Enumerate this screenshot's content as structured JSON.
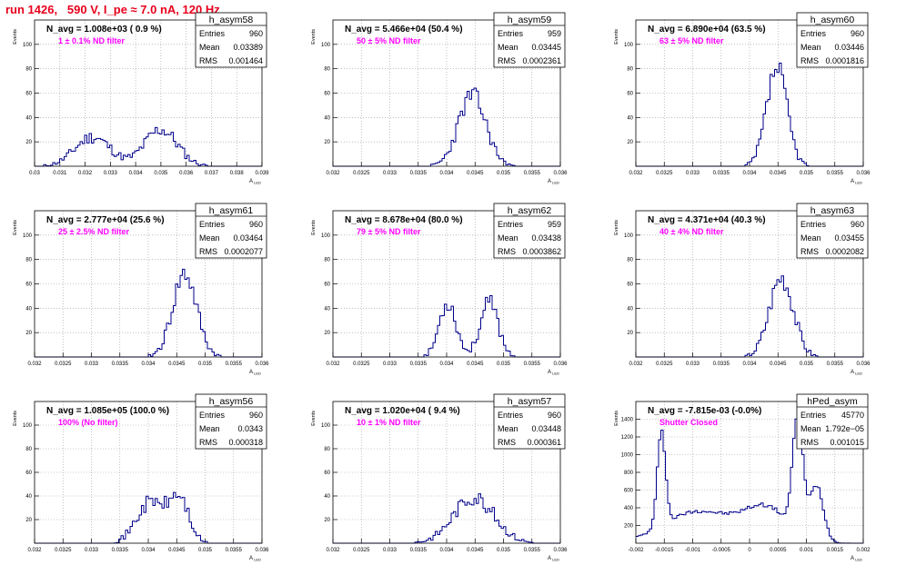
{
  "header": {
    "run_title": "run 1426,   590 V, I_pe ≈ 7.0 nA, 120 Hz"
  },
  "styles": {
    "title_color": "#e8001c",
    "filter_color": "#ff00ff",
    "histo_color": "#00008b",
    "grid_color": "#999999"
  },
  "chart_data": [
    {
      "type": "histogram",
      "name": "h_asym58",
      "n_avg_label": "N_avg = 1.008e+03 ( 0.9 %)",
      "filter_label": "1 ± 0.1% ND filter",
      "stats": {
        "Entries": "960",
        "Mean": "0.03389",
        "RMS": "0.001464"
      },
      "ylabel": "Events",
      "xlabel": "A_LED",
      "xlim": [
        0.03,
        0.039
      ],
      "ylim": [
        0,
        120
      ],
      "xticks": [
        "0.03",
        "0.031",
        "0.032",
        "0.033",
        "0.034",
        "0.035",
        "0.036",
        "0.037",
        "0.038",
        "0.039"
      ],
      "yticks": [
        "20",
        "40",
        "60",
        "80",
        "100"
      ],
      "peaks": [
        [
          0.0323,
          24,
          0.0007
        ],
        [
          0.035,
          30,
          0.00065
        ]
      ],
      "noise_seed": 11
    },
    {
      "type": "histogram",
      "name": "h_asym59",
      "n_avg_label": "N_avg = 5.466e+04 (50.4 %)",
      "filter_label": "50 ± 5% ND filter",
      "stats": {
        "Entries": "959",
        "Mean": "0.03445",
        "RMS": "0.0002361"
      },
      "ylabel": "Events",
      "xlabel": "A_LED",
      "xlim": [
        0.032,
        0.036
      ],
      "ylim": [
        0,
        120
      ],
      "xticks": [
        "0.032",
        "0.0325",
        "0.033",
        "0.0335",
        "0.034",
        "0.0345",
        "0.035",
        "0.0355",
        "0.036"
      ],
      "yticks": [
        "20",
        "40",
        "60",
        "80",
        "100"
      ],
      "peaks": [
        [
          0.03445,
          58,
          0.00024
        ]
      ],
      "noise_seed": 23
    },
    {
      "type": "histogram",
      "name": "h_asym60",
      "n_avg_label": "N_avg = 6.890e+04 (63.5 %)",
      "filter_label": "63 ± 5% ND filter",
      "stats": {
        "Entries": "960",
        "Mean": "0.03446",
        "RMS": "0.0001816"
      },
      "ylabel": "Events",
      "xlabel": "A_LED",
      "xlim": [
        0.032,
        0.036
      ],
      "ylim": [
        0,
        120
      ],
      "xticks": [
        "0.032",
        "0.0325",
        "0.033",
        "0.0335",
        "0.034",
        "0.0345",
        "0.035",
        "0.0355",
        "0.036"
      ],
      "yticks": [
        "20",
        "40",
        "60",
        "80",
        "100"
      ],
      "peaks": [
        [
          0.03448,
          80,
          0.00018
        ]
      ],
      "noise_seed": 37
    },
    {
      "type": "histogram",
      "name": "h_asym61",
      "n_avg_label": "N_avg = 2.777e+04 (25.6 %)",
      "filter_label": "25 ± 2.5% ND filter",
      "stats": {
        "Entries": "960",
        "Mean": "0.03464",
        "RMS": "0.0002077"
      },
      "ylabel": "Events",
      "xlabel": "A_LED",
      "xlim": [
        0.032,
        0.036
      ],
      "ylim": [
        0,
        120
      ],
      "xticks": [
        "0.032",
        "0.0325",
        "0.033",
        "0.0335",
        "0.034",
        "0.0345",
        "0.035",
        "0.0355",
        "0.036"
      ],
      "yticks": [
        "20",
        "40",
        "60",
        "80",
        "100"
      ],
      "peaks": [
        [
          0.03464,
          68,
          0.00021
        ]
      ],
      "noise_seed": 41
    },
    {
      "type": "histogram",
      "name": "h_asym62",
      "n_avg_label": "N_avg = 8.678e+04 (80.0 %)",
      "filter_label": "79 ± 5% ND filter",
      "stats": {
        "Entries": "959",
        "Mean": "0.03438",
        "RMS": "0.0003862"
      },
      "ylabel": "Events",
      "xlabel": "A_LED",
      "xlim": [
        0.032,
        0.036
      ],
      "ylim": [
        0,
        120
      ],
      "xticks": [
        "0.032",
        "0.0325",
        "0.033",
        "0.0335",
        "0.034",
        "0.0345",
        "0.035",
        "0.0355",
        "0.036"
      ],
      "yticks": [
        "20",
        "40",
        "60",
        "80",
        "100"
      ],
      "peaks": [
        [
          0.03402,
          45,
          0.00015
        ],
        [
          0.03475,
          44,
          0.00016
        ]
      ],
      "noise_seed": 53
    },
    {
      "type": "histogram",
      "name": "h_asym63",
      "n_avg_label": "N_avg = 4.371e+04 (40.3 %)",
      "filter_label": "40 ± 4% ND filter",
      "stats": {
        "Entries": "960",
        "Mean": "0.03455",
        "RMS": "0.0002082"
      },
      "ylabel": "Events",
      "xlabel": "A_LED",
      "xlim": [
        0.032,
        0.036
      ],
      "ylim": [
        0,
        120
      ],
      "xticks": [
        "0.032",
        "0.0325",
        "0.033",
        "0.0335",
        "0.034",
        "0.0345",
        "0.035",
        "0.0355",
        "0.036"
      ],
      "yticks": [
        "20",
        "40",
        "60",
        "80",
        "100"
      ],
      "peaks": [
        [
          0.03456,
          66,
          0.00021
        ]
      ],
      "noise_seed": 67
    },
    {
      "type": "histogram",
      "name": "h_asym56",
      "n_avg_label": "N_avg = 1.085e+05 (100.0 %)",
      "filter_label": "100% (No filter)",
      "stats": {
        "Entries": "960",
        "Mean": "0.0343",
        "RMS": "0.000318"
      },
      "ylabel": "Events",
      "xlabel": "A_LED",
      "xlim": [
        0.032,
        0.036
      ],
      "ylim": [
        0,
        120
      ],
      "xticks": [
        "0.032",
        "0.0325",
        "0.033",
        "0.0335",
        "0.034",
        "0.0345",
        "0.035",
        "0.0355",
        "0.036"
      ],
      "yticks": [
        "20",
        "40",
        "60",
        "80",
        "100"
      ],
      "peaks": [
        [
          0.03405,
          35,
          0.00025
        ],
        [
          0.03455,
          36,
          0.00017
        ]
      ],
      "noise_seed": 71
    },
    {
      "type": "histogram",
      "name": "h_asym57",
      "n_avg_label": "N_avg = 1.020e+04 ( 9.4 %)",
      "filter_label": "10 ± 1% ND filter",
      "stats": {
        "Entries": "960",
        "Mean": "0.03448",
        "RMS": "0.000361"
      },
      "ylabel": "Events",
      "xlabel": "A_LED",
      "xlim": [
        0.032,
        0.036
      ],
      "ylim": [
        0,
        120
      ],
      "xticks": [
        "0.032",
        "0.0325",
        "0.033",
        "0.0335",
        "0.034",
        "0.0345",
        "0.035",
        "0.0355",
        "0.036"
      ],
      "yticks": [
        "20",
        "40",
        "60",
        "80",
        "100"
      ],
      "peaks": [
        [
          0.03448,
          39,
          0.00036
        ]
      ],
      "noise_seed": 83
    },
    {
      "type": "histogram",
      "name": "hPed_asym",
      "n_avg_label": "N_avg = -7.815e-03 (-0.0%)",
      "filter_label": "Shutter Closed",
      "stats": {
        "Entries": "45770",
        "Mean": "1.792e−05",
        "RMS": "0.001015"
      },
      "ylabel": "Events",
      "xlabel": "A_LED",
      "xlim": [
        -0.002,
        0.002
      ],
      "ylim": [
        0,
        1600
      ],
      "xticks": [
        "-0.002",
        "-0.0015",
        "-0.001",
        "-0.0005",
        "0",
        "0.0005",
        "0.001",
        "0.0015",
        "0.002"
      ],
      "yticks": [
        "200",
        "400",
        "600",
        "800",
        "1000",
        "1200",
        "1400"
      ],
      "peaks": [
        [
          -0.00155,
          1100,
          7e-05
        ],
        [
          0.00085,
          1300,
          9e-05
        ],
        [
          0.00118,
          620,
          0.00012
        ],
        [
          -0.0009,
          360,
          0.0006
        ],
        [
          0.0003,
          380,
          0.0004
        ]
      ],
      "noise_seed": 97
    }
  ]
}
